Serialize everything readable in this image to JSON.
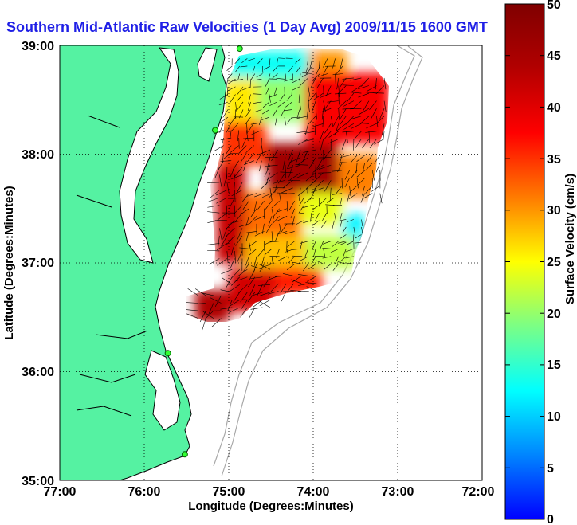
{
  "chart_data": {
    "type": "heatmap",
    "title": "Southern Mid-Atlantic Raw Velocities (1 Day Avg) 2009/11/15 1600 GMT",
    "xlabel": "Longitude (Degrees:Minutes)",
    "ylabel": "Latitude (Degrees:Minutes)",
    "x_ticks": [
      "77:00",
      "76:00",
      "75:00",
      "74:00",
      "73:00",
      "72:00"
    ],
    "y_ticks": [
      "39:00",
      "38:00",
      "37:00",
      "36:00",
      "35:00"
    ],
    "xlim": [
      -77,
      -72
    ],
    "ylim": [
      35,
      39
    ],
    "grid": true,
    "colorbar": {
      "label": "Surface Velocity (cm/s)",
      "range": [
        0,
        50
      ],
      "ticks": [
        "50",
        "45",
        "40",
        "35",
        "30",
        "25",
        "20",
        "15",
        "10",
        "5",
        "0"
      ]
    },
    "land_color": "#55f2a2",
    "ocean_color": "#ffffff",
    "hf_radar_sites": [
      {
        "lon": -74.87,
        "lat": 38.97
      },
      {
        "lon": -75.16,
        "lat": 38.22
      },
      {
        "lon": -75.72,
        "lat": 36.17
      },
      {
        "lon": -75.52,
        "lat": 35.24
      }
    ],
    "velocity_regions": [
      {
        "lon": [
          -75.0,
          -74.05
        ],
        "lat": [
          38.7,
          38.95
        ],
        "speed_cm_s": 13
      },
      {
        "lon": [
          -74.05,
          -73.6
        ],
        "lat": [
          38.7,
          38.95
        ],
        "speed_cm_s": 30
      },
      {
        "lon": [
          -75.05,
          -74.65
        ],
        "lat": [
          38.3,
          38.7
        ],
        "speed_cm_s": 26
      },
      {
        "lon": [
          -74.65,
          -74.1
        ],
        "lat": [
          38.3,
          38.7
        ],
        "speed_cm_s": 20
      },
      {
        "lon": [
          -74.1,
          -73.1
        ],
        "lat": [
          38.1,
          38.75
        ],
        "speed_cm_s": 38
      },
      {
        "lon": [
          -75.1,
          -74.55
        ],
        "lat": [
          37.9,
          38.3
        ],
        "speed_cm_s": 35
      },
      {
        "lon": [
          -74.55,
          -73.7
        ],
        "lat": [
          37.65,
          38.1
        ],
        "speed_cm_s": 46
      },
      {
        "lon": [
          -73.7,
          -73.2
        ],
        "lat": [
          37.6,
          38.0
        ],
        "speed_cm_s": 31
      },
      {
        "lon": [
          -75.15,
          -74.8
        ],
        "lat": [
          37.0,
          37.9
        ],
        "speed_cm_s": 42
      },
      {
        "lon": [
          -74.8,
          -74.15
        ],
        "lat": [
          37.25,
          37.65
        ],
        "speed_cm_s": 32
      },
      {
        "lon": [
          -74.15,
          -73.65
        ],
        "lat": [
          37.35,
          37.65
        ],
        "speed_cm_s": 24
      },
      {
        "lon": [
          -73.65,
          -73.4
        ],
        "lat": [
          37.15,
          37.45
        ],
        "speed_cm_s": 12
      },
      {
        "lon": [
          -74.8,
          -74.1
        ],
        "lat": [
          36.95,
          37.25
        ],
        "speed_cm_s": 28
      },
      {
        "lon": [
          -74.1,
          -73.5
        ],
        "lat": [
          36.95,
          37.25
        ],
        "speed_cm_s": 22
      },
      {
        "lon": [
          -75.0,
          -74.45
        ],
        "lat": [
          36.55,
          36.95
        ],
        "speed_cm_s": 41
      },
      {
        "lon": [
          -74.45,
          -73.9
        ],
        "lat": [
          36.7,
          36.95
        ],
        "speed_cm_s": 36
      },
      {
        "lon": [
          -75.4,
          -75.0
        ],
        "lat": [
          36.45,
          36.75
        ],
        "speed_cm_s": 44
      }
    ]
  }
}
